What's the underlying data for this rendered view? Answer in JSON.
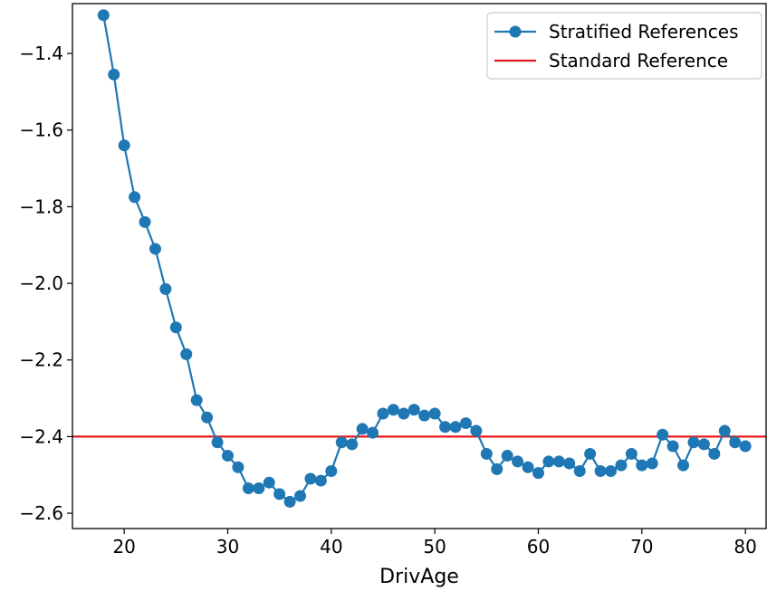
{
  "chart_data": {
    "type": "line",
    "title": "",
    "xlabel": "DrivAge",
    "ylabel": "",
    "xlim": [
      15,
      82
    ],
    "ylim": [
      -2.64,
      -1.27
    ],
    "x_ticks": [
      {
        "value": 20,
        "label": "20"
      },
      {
        "value": 30,
        "label": "30"
      },
      {
        "value": 40,
        "label": "40"
      },
      {
        "value": 50,
        "label": "50"
      },
      {
        "value": 60,
        "label": "60"
      },
      {
        "value": 70,
        "label": "70"
      },
      {
        "value": 80,
        "label": "80"
      }
    ],
    "y_ticks": [
      {
        "value": -1.4,
        "label": "−1.4"
      },
      {
        "value": -1.6,
        "label": "−1.6"
      },
      {
        "value": -1.8,
        "label": "−1.8"
      },
      {
        "value": -2.0,
        "label": "−2.0"
      },
      {
        "value": -2.2,
        "label": "−2.2"
      },
      {
        "value": -2.4,
        "label": "−2.4"
      },
      {
        "value": -2.6,
        "label": "−2.6"
      }
    ],
    "grid": false,
    "legend_position": "top-right",
    "series": [
      {
        "name": "Stratified References",
        "kind": "line-markers",
        "color": "#1f77b4",
        "x": [
          18,
          19,
          20,
          21,
          22,
          23,
          24,
          25,
          26,
          27,
          28,
          29,
          30,
          31,
          32,
          33,
          34,
          35,
          36,
          37,
          38,
          39,
          40,
          41,
          42,
          43,
          44,
          45,
          46,
          47,
          48,
          49,
          50,
          51,
          52,
          53,
          54,
          55,
          56,
          57,
          58,
          59,
          60,
          61,
          62,
          63,
          64,
          65,
          66,
          67,
          68,
          69,
          70,
          71,
          72,
          73,
          74,
          75,
          76,
          77,
          78,
          79,
          80
        ],
        "y": [
          -1.3,
          -1.455,
          -1.64,
          -1.775,
          -1.84,
          -1.91,
          -2.015,
          -2.115,
          -2.185,
          -2.305,
          -2.35,
          -2.415,
          -2.45,
          -2.48,
          -2.535,
          -2.535,
          -2.52,
          -2.55,
          -2.57,
          -2.555,
          -2.51,
          -2.515,
          -2.49,
          -2.415,
          -2.42,
          -2.38,
          -2.39,
          -2.34,
          -2.33,
          -2.34,
          -2.33,
          -2.345,
          -2.34,
          -2.375,
          -2.375,
          -2.365,
          -2.385,
          -2.445,
          -2.485,
          -2.45,
          -2.465,
          -2.48,
          -2.495,
          -2.465,
          -2.465,
          -2.47,
          -2.49,
          -2.445,
          -2.49,
          -2.49,
          -2.475,
          -2.445,
          -2.475,
          -2.47,
          -2.395,
          -2.425,
          -2.475,
          -2.415,
          -2.42,
          -2.445,
          -2.385,
          -2.415,
          -2.425
        ]
      },
      {
        "name": "Standard Reference",
        "kind": "hline",
        "color": "#e8191a",
        "y": -2.4
      }
    ]
  }
}
